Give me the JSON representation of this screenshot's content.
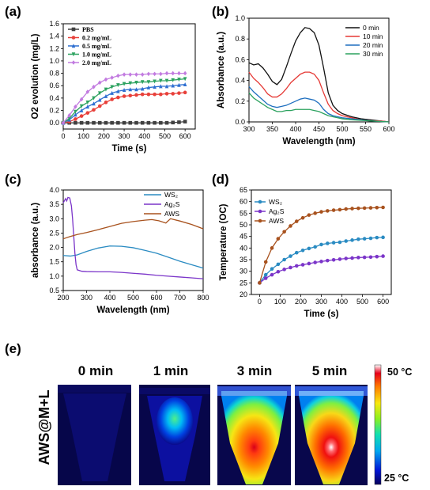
{
  "panels": {
    "a": {
      "label": "(a)"
    },
    "b": {
      "label": "(b)"
    },
    "c": {
      "label": "(c)"
    },
    "d": {
      "label": "(d)"
    },
    "e": {
      "label": "(e)"
    }
  },
  "chart_data": [
    {
      "id": "a",
      "type": "line",
      "xlabel": "Time (s)",
      "ylabel": "O2 evolution (mg/L)",
      "xlim": [
        0,
        650
      ],
      "ylim": [
        -0.1,
        1.6
      ],
      "xticks": [
        0,
        100,
        200,
        300,
        400,
        500,
        600
      ],
      "yticks": [
        0.0,
        0.2,
        0.4,
        0.6,
        0.8,
        1.0,
        1.2,
        1.4,
        1.6
      ],
      "yticklabels": [
        "0.0",
        "0.2",
        "0.4",
        "0.6",
        "0.8",
        "1.0",
        "1.2",
        "1.4",
        "1.6"
      ],
      "x": [
        0,
        30,
        60,
        90,
        120,
        150,
        180,
        210,
        240,
        270,
        300,
        330,
        360,
        390,
        420,
        450,
        480,
        510,
        540,
        570,
        600
      ],
      "legend_position": "top-left",
      "series": [
        {
          "name": "PBS",
          "color": "#404040",
          "marker": "square",
          "values": [
            0,
            0,
            0,
            0,
            0,
            0,
            0,
            0,
            0,
            0,
            0,
            0,
            0,
            0,
            0,
            0,
            0,
            0,
            0.005,
            0.01,
            0.02
          ]
        },
        {
          "name": "0.2 mg/mL",
          "color": "#e8403a",
          "marker": "circle",
          "values": [
            0,
            0.02,
            0.06,
            0.11,
            0.16,
            0.21,
            0.27,
            0.33,
            0.38,
            0.41,
            0.43,
            0.44,
            0.45,
            0.46,
            0.46,
            0.46,
            0.46,
            0.47,
            0.47,
            0.48,
            0.49
          ]
        },
        {
          "name": "0.5 mg/mL",
          "color": "#2e6fd1",
          "marker": "triangle",
          "values": [
            0,
            0.05,
            0.13,
            0.2,
            0.26,
            0.31,
            0.37,
            0.43,
            0.48,
            0.51,
            0.53,
            0.54,
            0.54,
            0.55,
            0.57,
            0.58,
            0.59,
            0.59,
            0.6,
            0.61,
            0.62
          ]
        },
        {
          "name": "1.0 mg/mL",
          "color": "#2ca25f",
          "marker": "triangle-down",
          "values": [
            0,
            0.07,
            0.18,
            0.27,
            0.33,
            0.4,
            0.48,
            0.54,
            0.58,
            0.61,
            0.63,
            0.64,
            0.65,
            0.66,
            0.66,
            0.67,
            0.68,
            0.68,
            0.69,
            0.7,
            0.71
          ]
        },
        {
          "name": "2.0 mg/mL",
          "color": "#c27be0",
          "marker": "diamond",
          "values": [
            0,
            0.12,
            0.26,
            0.38,
            0.5,
            0.58,
            0.65,
            0.7,
            0.73,
            0.76,
            0.78,
            0.78,
            0.78,
            0.78,
            0.79,
            0.79,
            0.79,
            0.8,
            0.8,
            0.8,
            0.8
          ]
        }
      ]
    },
    {
      "id": "b",
      "type": "line",
      "xlabel": "Wavelength (nm)",
      "ylabel": "Absorbance (a.u.)",
      "xlim": [
        300,
        600
      ],
      "ylim": [
        0,
        1.0
      ],
      "xticks": [
        300,
        350,
        400,
        450,
        500,
        550,
        600
      ],
      "yticks": [
        0.0,
        0.2,
        0.4,
        0.6,
        0.8,
        1.0
      ],
      "yticklabels": [
        "0.0",
        "0.2",
        "0.4",
        "0.6",
        "0.8",
        "1.0"
      ],
      "x": [
        300,
        310,
        320,
        330,
        340,
        350,
        360,
        370,
        380,
        390,
        400,
        410,
        420,
        430,
        440,
        450,
        460,
        470,
        480,
        490,
        500,
        520,
        540,
        560,
        580,
        600
      ],
      "legend_position": "top-right",
      "series": [
        {
          "name": "0 min",
          "color": "#111111",
          "values": [
            0.57,
            0.55,
            0.56,
            0.52,
            0.46,
            0.39,
            0.36,
            0.41,
            0.53,
            0.66,
            0.78,
            0.86,
            0.91,
            0.9,
            0.86,
            0.74,
            0.52,
            0.28,
            0.16,
            0.11,
            0.08,
            0.05,
            0.03,
            0.02,
            0.01,
            0.0
          ]
        },
        {
          "name": "10 min",
          "color": "#e53935",
          "values": [
            0.48,
            0.42,
            0.38,
            0.33,
            0.27,
            0.24,
            0.24,
            0.27,
            0.32,
            0.38,
            0.42,
            0.46,
            0.48,
            0.48,
            0.46,
            0.4,
            0.28,
            0.17,
            0.11,
            0.08,
            0.06,
            0.04,
            0.02,
            0.01,
            0.01,
            0.0
          ]
        },
        {
          "name": "20 min",
          "color": "#1e6fbf",
          "values": [
            0.34,
            0.29,
            0.25,
            0.21,
            0.17,
            0.15,
            0.14,
            0.15,
            0.16,
            0.18,
            0.2,
            0.22,
            0.23,
            0.22,
            0.21,
            0.18,
            0.12,
            0.08,
            0.06,
            0.05,
            0.04,
            0.03,
            0.02,
            0.01,
            0.005,
            0.0
          ]
        },
        {
          "name": "30 min",
          "color": "#2ca25f",
          "values": [
            0.28,
            0.23,
            0.2,
            0.17,
            0.14,
            0.12,
            0.1,
            0.1,
            0.11,
            0.11,
            0.12,
            0.12,
            0.12,
            0.12,
            0.11,
            0.1,
            0.08,
            0.06,
            0.05,
            0.04,
            0.03,
            0.02,
            0.015,
            0.01,
            0.005,
            0.0
          ]
        }
      ]
    },
    {
      "id": "c",
      "type": "line",
      "xlabel": "Wavelength (nm)",
      "ylabel": "absorbance (a.u.)",
      "xlim": [
        200,
        800
      ],
      "ylim": [
        0.5,
        4.0
      ],
      "xticks": [
        200,
        300,
        400,
        500,
        600,
        700,
        800
      ],
      "yticks": [
        0.5,
        1.0,
        1.5,
        2.0,
        2.5,
        3.0,
        3.5,
        4.0
      ],
      "yticklabels": [
        "0.5",
        "1.0",
        "1.5",
        "2.0",
        "2.5",
        "3.0",
        "3.5",
        "4.0"
      ],
      "legend_position": "top-right",
      "series": [
        {
          "name": "WS₂",
          "color": "#2a8bc2",
          "x": [
            200,
            230,
            260,
            300,
            350,
            400,
            450,
            500,
            550,
            600,
            650,
            700,
            750,
            800
          ],
          "values": [
            1.72,
            1.7,
            1.74,
            1.86,
            1.98,
            2.05,
            2.04,
            1.99,
            1.9,
            1.8,
            1.66,
            1.52,
            1.4,
            1.28
          ]
        },
        {
          "name": "Ag₂S",
          "color": "#7b35c9",
          "x": [
            200,
            210,
            215,
            220,
            228,
            235,
            240,
            245,
            250,
            255,
            260,
            280,
            300,
            350,
            400,
            450,
            500,
            550,
            600,
            650,
            700,
            750,
            800
          ],
          "values": [
            3.55,
            3.7,
            3.62,
            3.74,
            3.72,
            3.45,
            3.0,
            2.4,
            1.8,
            1.4,
            1.22,
            1.17,
            1.16,
            1.15,
            1.15,
            1.13,
            1.1,
            1.07,
            1.03,
            1.0,
            0.97,
            0.94,
            0.91
          ]
        },
        {
          "name": "AWS",
          "color": "#a8521e",
          "x": [
            200,
            230,
            260,
            300,
            350,
            400,
            450,
            500,
            550,
            580,
            610,
            640,
            660,
            700,
            750,
            800
          ],
          "values": [
            2.3,
            2.38,
            2.45,
            2.52,
            2.62,
            2.73,
            2.84,
            2.9,
            2.95,
            2.97,
            2.93,
            2.85,
            3.0,
            2.92,
            2.8,
            2.65
          ]
        }
      ]
    },
    {
      "id": "d",
      "type": "line",
      "xlabel": "Time (s)",
      "ylabel": "Temperature (OC)",
      "xlim": [
        -40,
        640
      ],
      "ylim": [
        20,
        65
      ],
      "xticks": [
        0,
        100,
        200,
        300,
        400,
        500,
        600
      ],
      "yticks": [
        20,
        25,
        30,
        35,
        40,
        45,
        50,
        55,
        60,
        65
      ],
      "yticklabels": [
        "20",
        "25",
        "30",
        "35",
        "40",
        "45",
        "50",
        "55",
        "60",
        "65"
      ],
      "x": [
        0,
        30,
        60,
        90,
        120,
        150,
        180,
        210,
        240,
        270,
        300,
        330,
        360,
        390,
        420,
        450,
        480,
        510,
        540,
        570,
        600
      ],
      "legend_position": "top-left",
      "series": [
        {
          "name": "WS₂",
          "color": "#2a8bc2",
          "marker": "circle",
          "values": [
            25,
            28.5,
            31,
            33,
            35,
            36.5,
            38,
            39,
            39.8,
            40.5,
            41.5,
            42,
            42.3,
            42.5,
            43,
            43.4,
            43.8,
            44,
            44.2,
            44.5,
            44.6
          ]
        },
        {
          "name": "Ag₂S",
          "color": "#7b35c9",
          "marker": "circle",
          "values": [
            25,
            27,
            28.5,
            29.8,
            30.8,
            31.6,
            32.3,
            32.8,
            33.3,
            33.8,
            34.2,
            34.6,
            34.9,
            35.2,
            35.5,
            35.7,
            35.9,
            36,
            36.1,
            36.3,
            36.5
          ]
        },
        {
          "name": "AWS",
          "color": "#a8521e",
          "marker": "circle",
          "values": [
            25,
            34,
            40,
            44,
            47,
            49.5,
            51.5,
            53,
            54.2,
            55,
            55.6,
            56,
            56.3,
            56.5,
            56.8,
            57,
            57.1,
            57.2,
            57.3,
            57.4,
            57.5
          ]
        }
      ]
    }
  ],
  "thermal": {
    "ylabel": "AWS@M+L",
    "times": [
      "0 min",
      "1 min",
      "3 min",
      "5 min"
    ],
    "scale_max": "50 °C",
    "scale_min": "25 °C"
  }
}
